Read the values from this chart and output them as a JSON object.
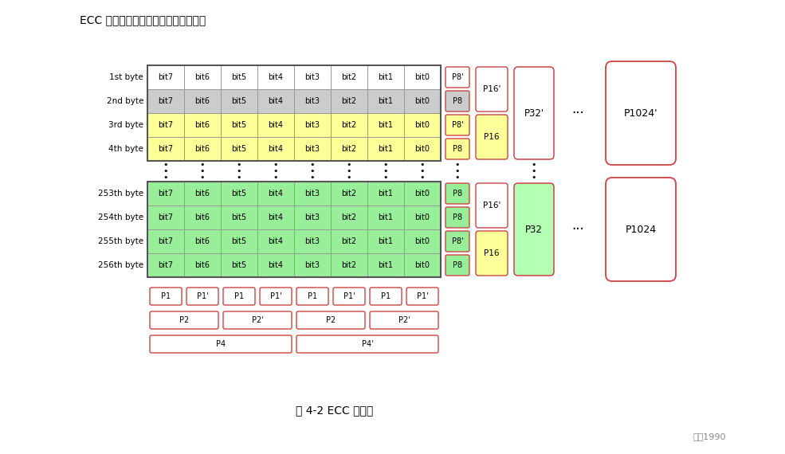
{
  "title_text": "ECC 的行校验和生成规则如下图所示：",
  "caption_text": "图 4-2 ECC 行校验",
  "watermark_text": "阿兀1990",
  "bg_color": "#ffffff",
  "bit_labels": [
    "bit7",
    "bit6",
    "bit5",
    "bit4",
    "bit3",
    "bit2",
    "bit1",
    "bit0"
  ],
  "row_labels_top": [
    "1st byte",
    "2nd byte",
    "3rd byte",
    "4th byte"
  ],
  "row_labels_bot": [
    "253th byte",
    "254th byte",
    "255th byte",
    "256th byte"
  ],
  "row_colors_top": [
    "#ffffff",
    "#cccccc",
    "#ffff99",
    "#ffff99"
  ],
  "row_colors_bot": [
    "#99ee99",
    "#99ee99",
    "#99ee99",
    "#99ee99"
  ],
  "p8_labels_top": [
    "P8'",
    "P8",
    "P8'",
    "P8"
  ],
  "p8_colors_top": [
    "#ffffff",
    "#cccccc",
    "#ffff99",
    "#ffff99"
  ],
  "p8_labels_bot": [
    "P8",
    "P8",
    "P8'",
    "P8"
  ],
  "p8_colors_bot": [
    "#99ee99",
    "#99ee99",
    "#99ee99",
    "#99ee99"
  ],
  "p16_top_labels": [
    "P16'",
    "P16"
  ],
  "p16_top_colors": [
    "#ffffff",
    "#ffff99"
  ],
  "p16_bot_labels": [
    "P16'",
    "P16"
  ],
  "p16_bot_colors": [
    "#ffffff",
    "#ffff99"
  ],
  "p32_top_label": "P32'",
  "p32_top_color": "#ffffff",
  "p32_bot_label": "P32",
  "p32_bot_color": "#b3ffb3",
  "p1024_top_label": "P1024'",
  "p1024_bot_label": "P1024",
  "red_border": "#cc4444",
  "dark_border": "#555555",
  "cell_border": "#999999",
  "p1_labels": [
    "P1",
    "P1'",
    "P1",
    "P1'",
    "P1",
    "P1'",
    "P1",
    "P1'"
  ],
  "p2_labels": [
    "P2",
    "P2'",
    "P2",
    "P2'"
  ],
  "p4_labels": [
    "P4",
    "P4'"
  ]
}
